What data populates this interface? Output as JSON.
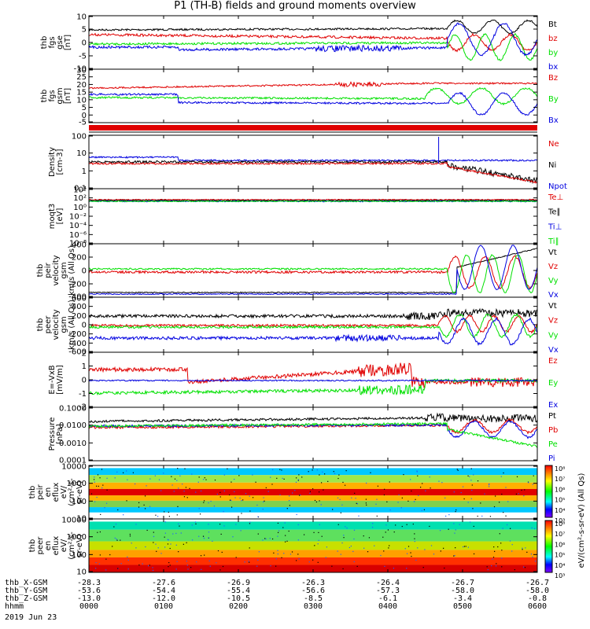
{
  "title": "P1 (TH-B) fields and ground moments overview",
  "date": "2019 Jun 23",
  "colors": {
    "black": "#000000",
    "red": "#e00000",
    "green": "#00e000",
    "blue": "#0000e0"
  },
  "chart_data": {
    "type": "line",
    "panels": [
      {
        "id": "fgs",
        "ylabel": [
          "thb",
          "fgs",
          "gse",
          "[nT]"
        ],
        "yticks": [
          "10",
          "5",
          "0",
          "-5",
          "-10"
        ],
        "legend": [
          {
            "name": "Bt",
            "color": "black"
          },
          {
            "name": "bz",
            "color": "red"
          },
          {
            "name": "by",
            "color": "green"
          },
          {
            "name": "bx",
            "color": "blue"
          }
        ]
      },
      {
        "id": "fgsgsm",
        "ylabel": [
          "thb",
          "fgs",
          "gsm",
          "[nT]"
        ],
        "yticks": [
          "30",
          "25",
          "20",
          "15",
          "10",
          "5",
          "0",
          "-5"
        ],
        "legend": [
          {
            "name": "Bz",
            "color": "red"
          },
          {
            "name": "By",
            "color": "green"
          },
          {
            "name": "Bx",
            "color": "blue"
          }
        ]
      },
      {
        "id": "density",
        "ylabel": [
          "Density",
          "[cm-3]"
        ],
        "yticks": [
          "100",
          "10",
          "1",
          "0.1"
        ],
        "legend": [
          {
            "name": "Ne",
            "color": "red"
          },
          {
            "name": "Ni",
            "color": "black"
          },
          {
            "name": "Npot",
            "color": "blue"
          }
        ]
      },
      {
        "id": "temp",
        "ylabel": [
          "moqt3",
          "[eV]"
        ],
        "yticks": [
          "10⁴",
          "10²",
          "10⁰",
          "10⁻²",
          "10⁻⁴",
          "10⁻⁶",
          "10⁻⁸"
        ],
        "legend": [
          {
            "name": "Te⊥",
            "color": "red"
          },
          {
            "name": "Te∥",
            "color": "black"
          },
          {
            "name": "Ti⊥",
            "color": "blue"
          },
          {
            "name": "Ti∥",
            "color": "green"
          }
        ]
      },
      {
        "id": "peir",
        "ylabel": [
          "thb",
          "peir",
          "velocity",
          "gsm",
          "km/s (All Qs)"
        ],
        "yticks": [
          "400",
          "200",
          "0",
          "-200",
          "-400"
        ],
        "legend": [
          {
            "name": "Vt",
            "color": "black"
          },
          {
            "name": "Vz",
            "color": "red"
          },
          {
            "name": "Vy",
            "color": "green"
          },
          {
            "name": "Vx",
            "color": "blue"
          }
        ]
      },
      {
        "id": "peer",
        "ylabel": [
          "thb",
          "peer",
          "velocity",
          "gsm",
          "km/s (All Qs)"
        ],
        "yticks": [
          "600",
          "400",
          "200",
          "0",
          "-200",
          "-400",
          "-600"
        ],
        "legend": [
          {
            "name": "Vt",
            "color": "black"
          },
          {
            "name": "Vz",
            "color": "red"
          },
          {
            "name": "Vy",
            "color": "green"
          },
          {
            "name": "Vx",
            "color": "blue"
          }
        ]
      },
      {
        "id": "efield",
        "ylabel": [
          "E=-VxB",
          "[mV/m]"
        ],
        "yticks": [
          "2",
          "1",
          "0",
          "-1",
          "-2"
        ],
        "legend": [
          {
            "name": "Ez",
            "color": "red"
          },
          {
            "name": "Ey",
            "color": "green"
          },
          {
            "name": "Ex",
            "color": "blue"
          }
        ]
      },
      {
        "id": "pressure",
        "ylabel": [
          "Pressure",
          "[nPa]"
        ],
        "yticks": [
          "0.1000",
          "0.0100",
          "0.0010",
          "0.0001"
        ],
        "legend": [
          {
            "name": "Pt",
            "color": "black"
          },
          {
            "name": "Pb",
            "color": "red"
          },
          {
            "name": "Pe",
            "color": "green"
          },
          {
            "name": "Pi",
            "color": "blue"
          }
        ]
      },
      {
        "id": "peirspec",
        "ylabel": [
          "thb",
          "peir",
          "en",
          "eflux",
          "eV/",
          "(cm²-s-",
          "sr-eV)"
        ],
        "yticks": [
          "10000",
          "1000",
          "100",
          "10"
        ]
      },
      {
        "id": "peerspec",
        "ylabel": [
          "thb",
          "peer",
          "en",
          "eflux",
          "eV/",
          "(cm²-s-",
          "sr-eV)"
        ],
        "yticks": [
          "10000",
          "1000",
          "100",
          "10"
        ]
      }
    ],
    "colorbar": {
      "label": "eV/(cm²-s-sr-eV) (All Qs)",
      "ticks": [
        "10⁸",
        "10⁷",
        "10⁶",
        "10⁵",
        "10⁴",
        "10³"
      ]
    },
    "x_axis": {
      "rows": [
        {
          "label": "thb_X-GSM",
          "values": [
            "-28.3",
            "-27.6",
            "-26.9",
            "-26.3",
            "-26.4",
            "-26.7",
            "-26.7"
          ]
        },
        {
          "label": "thb_Y-GSM",
          "values": [
            "-53.6",
            "-54.4",
            "-55.4",
            "-56.6",
            "-57.3",
            "-58.0",
            "-58.0"
          ]
        },
        {
          "label": "thb_Z-GSM",
          "values": [
            "-13.0",
            "-12.0",
            "-10.5",
            "-8.5",
            "-6.1",
            "-3.4",
            "-0.8"
          ]
        },
        {
          "label": "hhmm",
          "values": [
            "0000",
            "0100",
            "0200",
            "0300",
            "0400",
            "0500",
            "0600"
          ]
        }
      ]
    }
  }
}
